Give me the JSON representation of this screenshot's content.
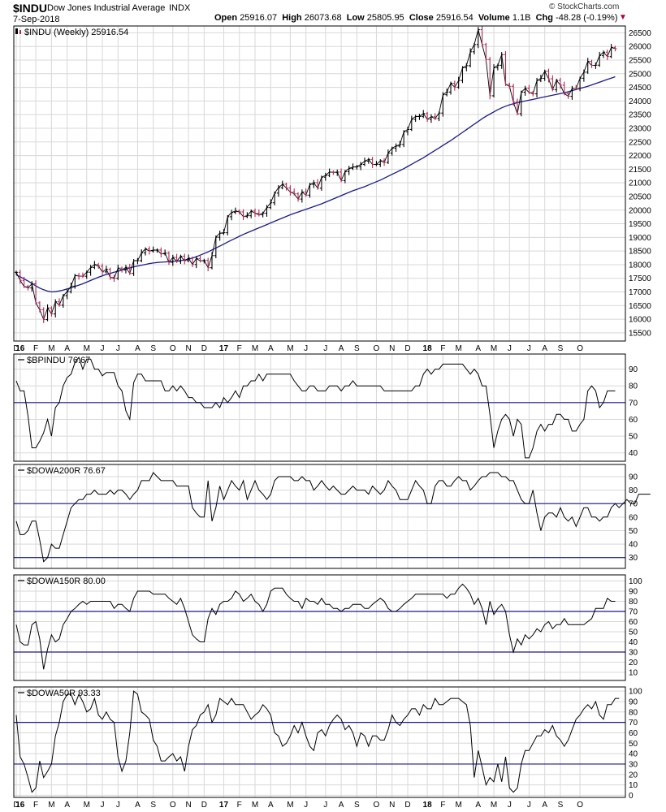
{
  "header": {
    "symbol": "$INDU",
    "name": "Dow Jones Industrial Average",
    "exchange": "INDX",
    "date": "7-Sep-2018",
    "copyright": "© StockCharts.com",
    "open_label": "Open",
    "open": "25916.07",
    "high_label": "High",
    "high": "26073.68",
    "low_label": "Low",
    "low": "25805.95",
    "close_label": "Close",
    "close": "25916.54",
    "volume_label": "Volume",
    "volume": "1.1B",
    "chg_label": "Chg",
    "chg": "-48.28 (-0.19%)"
  },
  "colors": {
    "price_up": "#000000",
    "price_down": "#b0285a",
    "ma": "#1a1a8c",
    "grid": "#d8d8d8",
    "border": "#000000",
    "ref_line": "#1a1a8c"
  },
  "x_axis": {
    "labels": [
      {
        "w": 0,
        "t": "D"
      },
      {
        "w": 1,
        "t": "16",
        "bold": true
      },
      {
        "w": 5,
        "t": "F"
      },
      {
        "w": 9,
        "t": "M"
      },
      {
        "w": 13,
        "t": "A"
      },
      {
        "w": 18,
        "t": "M"
      },
      {
        "w": 22,
        "t": "J"
      },
      {
        "w": 26,
        "t": "J"
      },
      {
        "w": 31,
        "t": "A"
      },
      {
        "w": 35,
        "t": "S"
      },
      {
        "w": 40,
        "t": "O"
      },
      {
        "w": 44,
        "t": "N"
      },
      {
        "w": 48,
        "t": "D"
      },
      {
        "w": 53,
        "t": "17",
        "bold": true
      },
      {
        "w": 57,
        "t": "F"
      },
      {
        "w": 61,
        "t": "M"
      },
      {
        "w": 65,
        "t": "A"
      },
      {
        "w": 70,
        "t": "M"
      },
      {
        "w": 74,
        "t": "J"
      },
      {
        "w": 79,
        "t": "J"
      },
      {
        "w": 83,
        "t": "A"
      },
      {
        "w": 87,
        "t": "S"
      },
      {
        "w": 92,
        "t": "O"
      },
      {
        "w": 96,
        "t": "N"
      },
      {
        "w": 100,
        "t": "D"
      },
      {
        "w": 105,
        "t": "18",
        "bold": true
      },
      {
        "w": 109,
        "t": "F"
      },
      {
        "w": 113,
        "t": "M"
      },
      {
        "w": 118,
        "t": "A"
      },
      {
        "w": 122,
        "t": "M"
      },
      {
        "w": 126,
        "t": "J"
      },
      {
        "w": 131,
        "t": "J"
      },
      {
        "w": 135,
        "t": "A"
      },
      {
        "w": 139,
        "t": "S"
      },
      {
        "w": 144,
        "t": "O"
      }
    ]
  },
  "chart_data": [
    {
      "type": "line",
      "subtype": "ohlc_weekly_with_moving_average",
      "legend": "$INDU (Weekly) 25916.54",
      "ylim": [
        15200,
        26750
      ],
      "y_ticks": [
        15500,
        16000,
        16500,
        17000,
        17500,
        18000,
        18500,
        19000,
        19500,
        20000,
        20500,
        21000,
        21500,
        22000,
        22500,
        23000,
        23500,
        24000,
        24500,
        25000,
        25500,
        26000,
        26500
      ],
      "weekly_close": [
        17720,
        17425,
        17200,
        17147,
        17300,
        16600,
        16346,
        15988,
        16413,
        16195,
        16639,
        16517,
        16865,
        17006,
        17213,
        17602,
        17582,
        17576,
        17724,
        17897,
        18004,
        17946,
        17736,
        17831,
        17535,
        17500,
        17873,
        17807,
        17901,
        17680,
        18146,
        18147,
        18432,
        18576,
        18500,
        18534,
        18538,
        18397,
        18424,
        18085,
        18266,
        18123,
        18308,
        18146,
        18240,
        18004,
        18224,
        18139,
        18155,
        17888,
        18332,
        19007,
        19152,
        19171,
        19757,
        19915,
        19963,
        19934,
        19762,
        19795,
        19963,
        19886,
        19827,
        19885,
        20093,
        20269,
        20624,
        20822,
        20946,
        20813,
        20664,
        20597,
        20405,
        20663,
        20548,
        20941,
        21006,
        20804,
        21207,
        21271,
        21394,
        21384,
        21394,
        21081,
        21412,
        21529,
        21580,
        21593,
        21675,
        21795,
        21858,
        21674,
        21675,
        21807,
        21750,
        22092,
        22268,
        22349,
        22405,
        22872,
        22957,
        23329,
        23434,
        23434,
        23539,
        23328,
        23422,
        23358,
        23558,
        24231,
        24329,
        24651,
        24508,
        24754,
        25219,
        25295,
        25803,
        26071,
        26616,
        26071,
        25520,
        24191,
        25219,
        25310,
        25700,
        24610,
        24538,
        23957,
        23533,
        24322,
        24462,
        24311,
        24262,
        24753,
        24831,
        25090,
        24813,
        24416,
        24756,
        24580,
        24270,
        24174,
        24457,
        24456,
        24834,
        25058,
        25451,
        25306,
        25313,
        25669,
        25790,
        25628,
        25964,
        25916
      ],
      "moving_average_40w": [
        17620,
        17560,
        17480,
        17400,
        17310,
        17220,
        17140,
        17080,
        17030,
        17000,
        17010,
        17040,
        17070,
        17110,
        17150,
        17200,
        17250,
        17300,
        17360,
        17420,
        17480,
        17540,
        17590,
        17640,
        17680,
        17720,
        17760,
        17800,
        17840,
        17880,
        17920,
        17950,
        17980,
        18010,
        18040,
        18060,
        18080,
        18090,
        18100,
        18110,
        18120,
        18130,
        18150,
        18170,
        18200,
        18240,
        18290,
        18350,
        18410,
        18470,
        18540,
        18610,
        18680,
        18750,
        18830,
        18900,
        18970,
        19040,
        19110,
        19170,
        19230,
        19290,
        19350,
        19410,
        19470,
        19530,
        19590,
        19650,
        19710,
        19770,
        19830,
        19880,
        19930,
        19980,
        20030,
        20080,
        20130,
        20180,
        20230,
        20290,
        20350,
        20410,
        20470,
        20530,
        20590,
        20650,
        20710,
        20760,
        20810,
        20860,
        20920,
        20980,
        21040,
        21100,
        21170,
        21240,
        21310,
        21380,
        21450,
        21520,
        21600,
        21680,
        21760,
        21840,
        21920,
        22010,
        22100,
        22190,
        22280,
        22370,
        22460,
        22550,
        22650,
        22750,
        22850,
        22950,
        23050,
        23150,
        23250,
        23350,
        23440,
        23520,
        23600,
        23680,
        23750,
        23810,
        23860,
        23900,
        23940,
        23970,
        24000,
        24030,
        24060,
        24090,
        24120,
        24150,
        24180,
        24210,
        24240,
        24270,
        24300,
        24340,
        24380,
        24420,
        24460,
        24500,
        24540,
        24590,
        24640,
        24690,
        24740,
        24790,
        24840,
        24890
      ],
      "reference_lines": []
    },
    {
      "type": "line",
      "legend": "$BPINDU 76.67",
      "ylim": [
        35,
        99
      ],
      "y_ticks": [
        40,
        50,
        60,
        70,
        80,
        90
      ],
      "reference_lines": [
        70
      ],
      "values": [
        83,
        77,
        77,
        62,
        43,
        43,
        47,
        52,
        60,
        50,
        67,
        70,
        80,
        85,
        87,
        94,
        97,
        90,
        96,
        96,
        90,
        90,
        86,
        88,
        88,
        88,
        80,
        77,
        65,
        60,
        82,
        87,
        87,
        83,
        83,
        83,
        83,
        83,
        77,
        77,
        80,
        77,
        80,
        77,
        73,
        73,
        70,
        70,
        67,
        67,
        67,
        70,
        67,
        73,
        70,
        73,
        77,
        73,
        80,
        80,
        83,
        83,
        87,
        83,
        87,
        87,
        87,
        87,
        87,
        87,
        87,
        83,
        80,
        77,
        77,
        80,
        80,
        77,
        77,
        77,
        80,
        80,
        80,
        77,
        80,
        80,
        83,
        80,
        80,
        80,
        80,
        80,
        80,
        80,
        77,
        77,
        77,
        77,
        77,
        77,
        77,
        77,
        80,
        80,
        87,
        90,
        87,
        90,
        90,
        93,
        93,
        93,
        93,
        93,
        93,
        90,
        87,
        90,
        87,
        80,
        80,
        63,
        43,
        53,
        60,
        63,
        60,
        50,
        60,
        57,
        37,
        37,
        43,
        53,
        57,
        53,
        57,
        57,
        63,
        63,
        60,
        60,
        53,
        53,
        57,
        60,
        77,
        80,
        77,
        67,
        70,
        77,
        77,
        77
      ]
    },
    {
      "type": "line",
      "legend": "$DOWA200R 76.67",
      "ylim": [
        22,
        99
      ],
      "y_ticks": [
        30,
        40,
        50,
        60,
        70,
        80,
        90
      ],
      "reference_lines": [
        70,
        30
      ],
      "values": [
        57,
        47,
        47,
        50,
        57,
        57,
        43,
        27,
        30,
        40,
        37,
        37,
        47,
        57,
        67,
        70,
        73,
        73,
        77,
        77,
        80,
        77,
        77,
        77,
        80,
        77,
        80,
        80,
        77,
        73,
        77,
        80,
        87,
        87,
        87,
        93,
        90,
        87,
        87,
        87,
        87,
        83,
        83,
        83,
        83,
        67,
        63,
        60,
        60,
        87,
        57,
        67,
        83,
        73,
        80,
        87,
        83,
        80,
        87,
        73,
        80,
        87,
        80,
        77,
        73,
        77,
        87,
        90,
        90,
        90,
        90,
        87,
        87,
        90,
        87,
        87,
        80,
        83,
        87,
        83,
        80,
        83,
        80,
        77,
        77,
        80,
        83,
        80,
        80,
        80,
        77,
        83,
        80,
        77,
        80,
        87,
        83,
        80,
        73,
        73,
        73,
        80,
        87,
        83,
        80,
        70,
        70,
        83,
        87,
        87,
        83,
        83,
        87,
        90,
        87,
        87,
        80,
        83,
        87,
        90,
        90,
        93,
        93,
        93,
        90,
        90,
        87,
        87,
        80,
        73,
        70,
        70,
        80,
        63,
        50,
        60,
        63,
        63,
        60,
        67,
        60,
        57,
        60,
        53,
        60,
        67,
        67,
        60,
        60,
        57,
        60,
        60,
        67,
        70,
        67,
        70,
        73,
        70,
        70,
        77,
        77,
        77,
        77
      ]
    },
    {
      "type": "line",
      "legend": "$DOWA150R 80.00",
      "ylim": [
        2,
        106
      ],
      "y_ticks": [
        10,
        20,
        30,
        40,
        50,
        60,
        70,
        80,
        90,
        100
      ],
      "reference_lines": [
        70,
        30
      ],
      "values": [
        57,
        40,
        37,
        37,
        57,
        60,
        43,
        13,
        33,
        47,
        40,
        43,
        57,
        63,
        70,
        73,
        77,
        80,
        77,
        80,
        80,
        80,
        80,
        80,
        80,
        73,
        77,
        77,
        73,
        70,
        83,
        90,
        90,
        90,
        90,
        87,
        87,
        87,
        87,
        83,
        80,
        77,
        83,
        73,
        60,
        47,
        43,
        40,
        40,
        63,
        73,
        67,
        77,
        80,
        80,
        83,
        90,
        87,
        80,
        83,
        87,
        80,
        77,
        70,
        77,
        90,
        93,
        93,
        93,
        87,
        83,
        80,
        80,
        73,
        83,
        80,
        80,
        77,
        83,
        77,
        77,
        73,
        73,
        70,
        73,
        73,
        77,
        77,
        77,
        73,
        73,
        77,
        80,
        83,
        80,
        73,
        70,
        70,
        73,
        77,
        80,
        83,
        87,
        87,
        87,
        87,
        87,
        87,
        87,
        87,
        83,
        87,
        87,
        93,
        97,
        93,
        87,
        77,
        83,
        73,
        57,
        80,
        67,
        73,
        77,
        70,
        47,
        30,
        43,
        37,
        47,
        43,
        47,
        53,
        50,
        57,
        60,
        53,
        57,
        57,
        63,
        57,
        57,
        57,
        57,
        57,
        60,
        63,
        73,
        73,
        73,
        83,
        80,
        80
      ]
    },
    {
      "type": "line",
      "legend": "$DOWA50R 93.33",
      "ylim": [
        -2,
        104
      ],
      "y_ticks": [
        0,
        10,
        20,
        30,
        40,
        50,
        60,
        70,
        80,
        90,
        100
      ],
      "reference_lines": [
        70,
        30
      ],
      "values": [
        77,
        37,
        30,
        17,
        3,
        7,
        33,
        17,
        23,
        30,
        57,
        70,
        90,
        97,
        97,
        87,
        97,
        90,
        80,
        83,
        93,
        77,
        73,
        80,
        73,
        70,
        37,
        23,
        33,
        60,
        100,
        97,
        80,
        77,
        73,
        53,
        47,
        33,
        33,
        37,
        40,
        33,
        37,
        23,
        47,
        63,
        67,
        77,
        80,
        87,
        70,
        77,
        93,
        90,
        87,
        93,
        87,
        87,
        87,
        80,
        73,
        77,
        80,
        87,
        83,
        77,
        60,
        57,
        47,
        50,
        57,
        67,
        60,
        70,
        57,
        47,
        43,
        60,
        63,
        57,
        67,
        73,
        77,
        73,
        63,
        67,
        60,
        47,
        60,
        57,
        47,
        57,
        57,
        53,
        53,
        63,
        77,
        70,
        67,
        73,
        77,
        83,
        83,
        77,
        87,
        83,
        83,
        93,
        87,
        87,
        90,
        93,
        93,
        93,
        90,
        87,
        67,
        17,
        43,
        27,
        10,
        17,
        13,
        30,
        13,
        37,
        7,
        3,
        7,
        30,
        43,
        43,
        50,
        57,
        57,
        63,
        60,
        67,
        57,
        53,
        47,
        53,
        63,
        73,
        77,
        83,
        87,
        83,
        90,
        77,
        73,
        87,
        87,
        93,
        93
      ]
    }
  ]
}
